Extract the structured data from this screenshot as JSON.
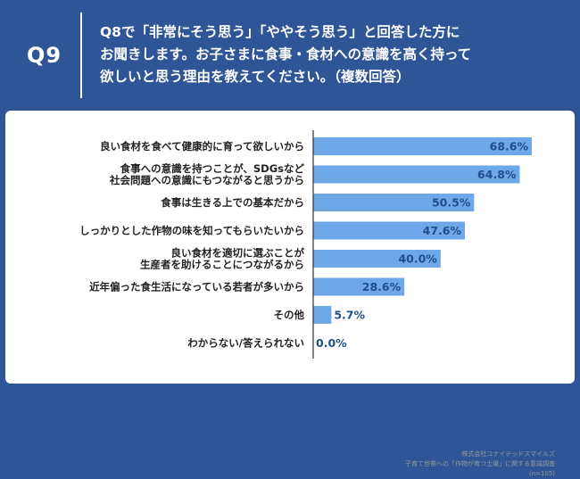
{
  "header": {
    "q_number": "Q9",
    "question_lines": [
      "Q8で「非常にそう思う」「ややそう思う」と回答した方に",
      "お聞きします。お子さまに食事・食材への意識を高く持って",
      "欲しいと思う理由を教えてください。（複数回答）"
    ]
  },
  "colors": {
    "background": "#2f5597",
    "bar": "#6fa8e8",
    "value_text": "#1f4e89",
    "axis": "#333333"
  },
  "chart_data": {
    "type": "bar",
    "orientation": "horizontal",
    "categories": [
      [
        "良い食材を食べて健康的に育って欲しいから"
      ],
      [
        "食事への意識を持つことが、SDGsなど",
        "社会問題への意識にもつながると思うから"
      ],
      [
        "食事は生きる上での基本だから"
      ],
      [
        "しっかりとした作物の味を知ってもらいたいから"
      ],
      [
        "良い食材を適切に選ぶことが",
        "生産者を助けることにつながるから"
      ],
      [
        "近年偏った食生活になっている若者が多いから"
      ],
      [
        "その他"
      ],
      [
        "わからない/答えられない"
      ]
    ],
    "values": [
      68.6,
      64.8,
      50.5,
      47.6,
      40.0,
      28.6,
      5.7,
      0.0
    ],
    "value_labels": [
      "68.6%",
      "64.8%",
      "50.5%",
      "47.6%",
      "40.0%",
      "28.6%",
      "5.7%",
      "0.0%"
    ],
    "xlim": [
      0,
      70
    ],
    "grid": false,
    "legend": "none"
  },
  "source": {
    "company": "株式会社ユナイテッドスマイルズ",
    "survey": "子育て世帯への「作物が育つ土壌」に関する意識調査",
    "n": "(n=105)"
  }
}
